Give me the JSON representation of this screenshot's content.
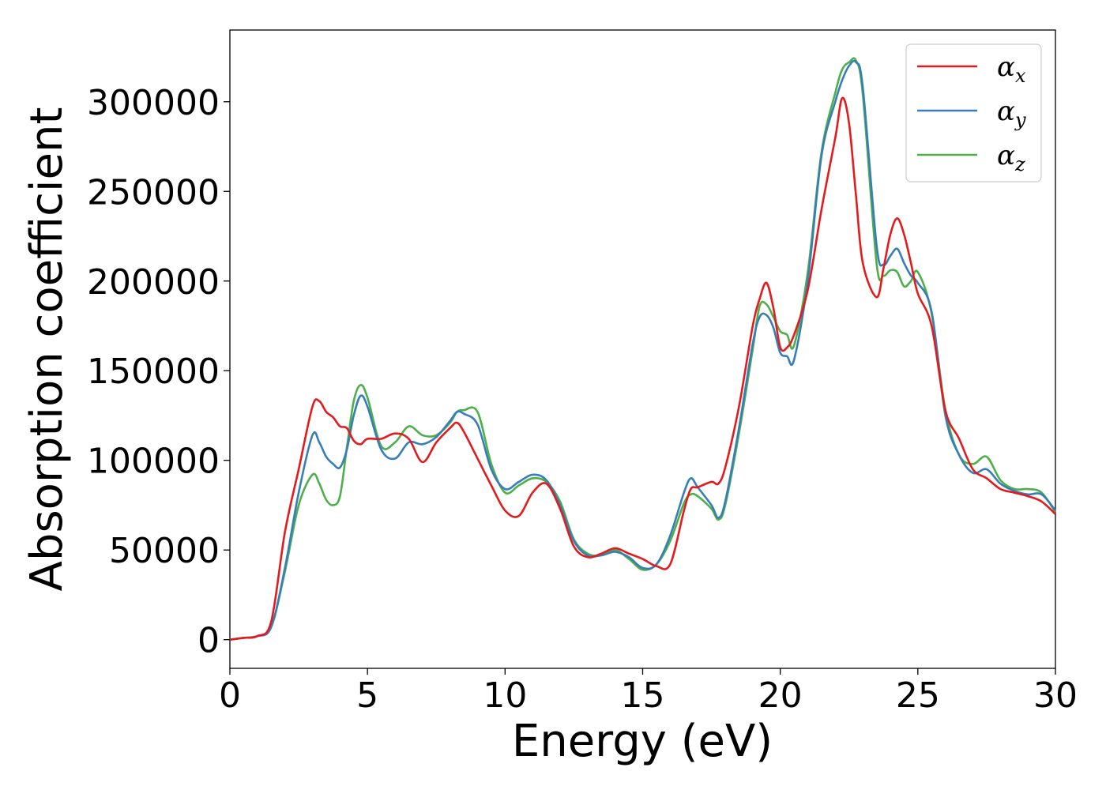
{
  "chart_data": {
    "type": "line",
    "title": "",
    "xlabel": "Energy (eV)",
    "ylabel": "Absorption coefficient",
    "xlim": [
      0,
      30
    ],
    "ylim": [
      -16000,
      340000
    ],
    "xticks": [
      0,
      5,
      10,
      15,
      20,
      25,
      30
    ],
    "yticks": [
      0,
      50000,
      100000,
      150000,
      200000,
      250000,
      300000
    ],
    "grid": false,
    "legend_position": "top-right",
    "x": [
      0,
      0.5,
      1,
      1.5,
      2,
      2.5,
      3,
      3.25,
      3.5,
      3.75,
      4,
      4.25,
      4.5,
      4.75,
      5,
      5.5,
      6,
      6.5,
      7,
      7.5,
      8,
      8.25,
      8.5,
      9,
      9.5,
      10,
      10.5,
      11,
      11.5,
      12,
      12.5,
      13,
      13.5,
      14,
      14.5,
      15,
      15.5,
      16,
      16.5,
      16.75,
      17,
      17.5,
      17.75,
      18,
      18.5,
      19,
      19.25,
      19.5,
      19.75,
      20,
      20.25,
      20.5,
      21,
      21.5,
      22,
      22.25,
      22.5,
      22.75,
      23,
      23.5,
      23.75,
      24,
      24.25,
      24.5,
      24.75,
      25,
      25.5,
      26,
      26.5,
      27,
      27.5,
      28,
      28.5,
      29,
      29.5,
      30
    ],
    "series": [
      {
        "name": "x",
        "color": "#e41a1c",
        "values": [
          0,
          1000,
          2000,
          10000,
          60000,
          95000,
          130000,
          133000,
          127000,
          124000,
          119000,
          118000,
          111000,
          109000,
          112000,
          112000,
          115000,
          112000,
          99000,
          110000,
          118000,
          121000,
          116000,
          101000,
          86000,
          72000,
          69000,
          82000,
          87000,
          73000,
          52000,
          46000,
          48000,
          51000,
          48000,
          45000,
          41000,
          42000,
          72000,
          84000,
          85000,
          88000,
          87000,
          96000,
          130000,
          175000,
          190000,
          199000,
          185000,
          163000,
          163000,
          170000,
          195000,
          240000,
          280000,
          302000,
          288000,
          248000,
          210000,
          191000,
          207000,
          226000,
          235000,
          226000,
          210000,
          193000,
          175000,
          128000,
          112000,
          95000,
          90000,
          84000,
          82000,
          80000,
          77000,
          70000
        ]
      },
      {
        "name": "y",
        "color": "#377eb8",
        "values": [
          0,
          1000,
          2000,
          7000,
          40000,
          82000,
          114000,
          110000,
          102000,
          98000,
          96000,
          106000,
          125000,
          136000,
          130000,
          106000,
          101000,
          110000,
          109000,
          113000,
          122000,
          127000,
          126000,
          120000,
          95000,
          84000,
          88000,
          92000,
          89000,
          75000,
          55000,
          47000,
          47000,
          49000,
          46000,
          40000,
          42000,
          58000,
          82000,
          90000,
          85000,
          75000,
          68000,
          77000,
          118000,
          165000,
          180000,
          181000,
          174000,
          160000,
          158000,
          156000,
          200000,
          270000,
          300000,
          312000,
          320000,
          322000,
          308000,
          220000,
          209000,
          214000,
          218000,
          210000,
          203000,
          199000,
          183000,
          125000,
          103000,
          93000,
          95000,
          87000,
          83000,
          81000,
          81000,
          72000
        ]
      },
      {
        "name": "z",
        "color": "#4daf4a",
        "values": [
          0,
          1000,
          2000,
          7000,
          38000,
          75000,
          92000,
          87000,
          78000,
          75000,
          80000,
          107000,
          133000,
          142000,
          135000,
          108000,
          110000,
          119000,
          114000,
          114000,
          121000,
          127000,
          128000,
          127000,
          98000,
          82000,
          86000,
          90000,
          88000,
          77000,
          56000,
          48000,
          47000,
          50000,
          45000,
          39000,
          42000,
          55000,
          76000,
          81000,
          80000,
          73000,
          67000,
          75000,
          115000,
          162000,
          186000,
          187000,
          180000,
          172000,
          170000,
          164000,
          205000,
          272000,
          305000,
          318000,
          322000,
          323000,
          304000,
          210000,
          203000,
          206000,
          205000,
          197000,
          200000,
          205000,
          182000,
          128000,
          103000,
          98000,
          102000,
          89000,
          84000,
          84000,
          82000,
          71000
        ]
      }
    ]
  }
}
